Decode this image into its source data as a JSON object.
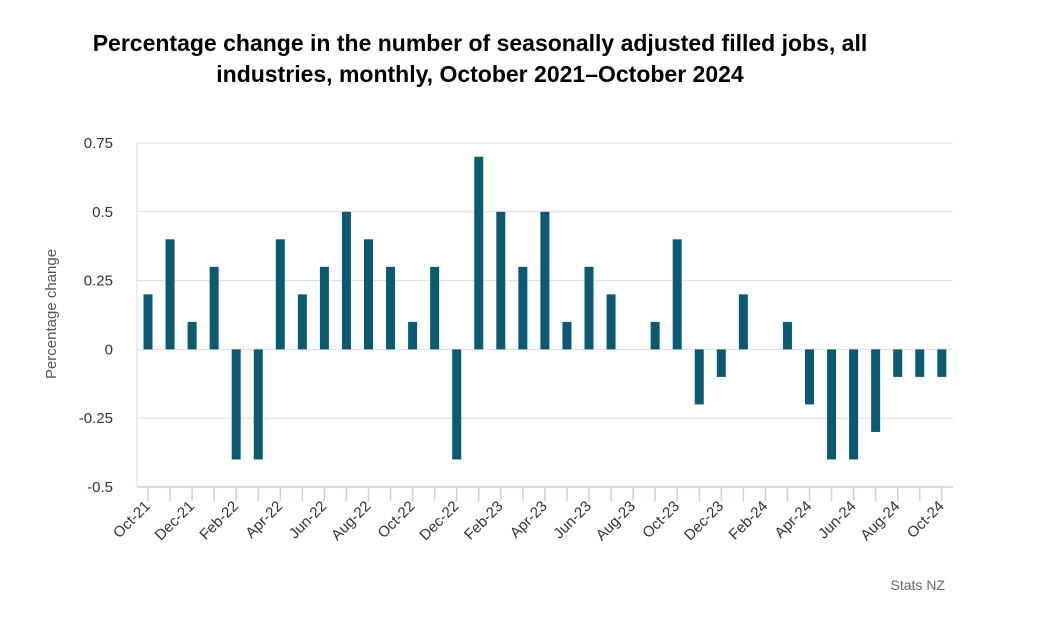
{
  "chart_data": {
    "type": "bar",
    "title": "Percentage change in the number of seasonally adjusted filled jobs, all industries, monthly, October 2021–October 2024",
    "xlabel": "",
    "ylabel": "Percentage change",
    "ylim": [
      -0.5,
      0.75
    ],
    "yticks": [
      "0.75",
      "0.5",
      "0.25",
      "0",
      "-0.25",
      "-0.5"
    ],
    "ytick_values": [
      0.75,
      0.5,
      0.25,
      0,
      -0.25,
      -0.5
    ],
    "grid": true,
    "bar_color": "#0b5a73",
    "categories": [
      "Oct-21",
      "Nov-21",
      "Dec-21",
      "Jan-22",
      "Feb-22",
      "Mar-22",
      "Apr-22",
      "May-22",
      "Jun-22",
      "Jul-22",
      "Aug-22",
      "Sep-22",
      "Oct-22",
      "Nov-22",
      "Dec-22",
      "Jan-23",
      "Feb-23",
      "Mar-23",
      "Apr-23",
      "May-23",
      "Jun-23",
      "Jul-23",
      "Aug-23",
      "Sep-23",
      "Oct-23",
      "Nov-23",
      "Dec-23",
      "Jan-24",
      "Feb-24",
      "Mar-24",
      "Apr-24",
      "May-24",
      "Jun-24",
      "Jul-24",
      "Aug-24",
      "Sep-24",
      "Oct-24"
    ],
    "values": [
      0.2,
      0.4,
      0.1,
      0.3,
      -0.4,
      -0.4,
      0.4,
      0.2,
      0.3,
      0.5,
      0.4,
      0.3,
      0.1,
      0.3,
      -0.4,
      0.7,
      0.5,
      0.3,
      0.5,
      0.1,
      0.3,
      0.2,
      0,
      0.1,
      0.4,
      -0.2,
      -0.1,
      0.2,
      0,
      0.1,
      -0.2,
      -0.4,
      -0.4,
      -0.3,
      -0.1,
      -0.1,
      -0.1
    ],
    "visible_tick_labels": [
      "Oct-21",
      "Dec-21",
      "Feb-22",
      "Apr-22",
      "Jun-22",
      "Aug-22",
      "Oct-22",
      "Dec-22",
      "Feb-23",
      "Apr-23",
      "Jun-23",
      "Aug-23",
      "Oct-23",
      "Dec-23",
      "Feb-24",
      "Apr-24",
      "Jun-24",
      "Aug-24",
      "Oct-24"
    ]
  },
  "source": "Stats NZ"
}
